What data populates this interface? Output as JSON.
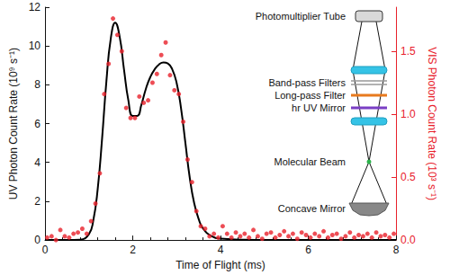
{
  "chart_data": {
    "type": "line",
    "xlabel": "Time of Flight (ms)",
    "ylabel": "UV Photon Count Rate (10⁹ s⁻¹)",
    "y2label": "VIS Photon Count Rate (10³ s⁻¹)",
    "xlim": [
      0,
      8
    ],
    "xticks": [
      0,
      2,
      4,
      6,
      8
    ],
    "ylim": [
      0,
      12
    ],
    "yticks": [
      0,
      2,
      4,
      6,
      8,
      10,
      12
    ],
    "y2lim": [
      0,
      1.85
    ],
    "y2ticks": [
      {
        "value": 0,
        "label": "0.0"
      },
      {
        "value": 0.5,
        "label": "0.5"
      },
      {
        "value": 1,
        "label": "1.0"
      },
      {
        "value": 1.5,
        "label": "1.5"
      }
    ],
    "grid": false,
    "annotations": [
      "Photomultiplier Tube",
      "Band-pass Filters",
      "Long-pass Filter",
      "hr UV Mirror",
      "Molecular Beam",
      "Concave Mirror"
    ],
    "series": [
      {
        "type": "line",
        "color": "#000000",
        "axis": "y",
        "x": [
          0,
          0.5,
          0.8,
          1.0,
          1.1,
          1.2,
          1.3,
          1.4,
          1.5,
          1.6,
          1.7,
          1.8,
          1.9,
          2.0,
          2.1,
          2.2,
          2.3,
          2.4,
          2.5,
          2.6,
          2.7,
          2.8,
          2.9,
          3.0,
          3.1,
          3.2,
          3.3,
          3.4,
          3.5,
          3.6,
          3.8,
          4.0,
          4.5,
          5,
          6,
          8
        ],
        "values": [
          0,
          0,
          0.02,
          0.3,
          1.0,
          2.6,
          5.2,
          8.2,
          10.4,
          11.2,
          10.5,
          8.8,
          7.2,
          6.4,
          6.4,
          7.0,
          7.8,
          8.4,
          8.8,
          9.05,
          9.15,
          9.1,
          8.8,
          8.1,
          6.8,
          5.0,
          3.2,
          1.9,
          1.1,
          0.6,
          0.2,
          0.07,
          0.02,
          0,
          0,
          0
        ]
      },
      {
        "type": "scatter",
        "color": "#e8202a",
        "axis": "y2",
        "marker": "circle",
        "x": [
          0.05,
          0.15,
          0.25,
          0.35,
          0.45,
          0.55,
          0.65,
          0.75,
          0.85,
          0.95,
          1.05,
          1.15,
          1.25,
          1.35,
          1.45,
          1.55,
          1.65,
          1.75,
          1.85,
          1.95,
          2.05,
          2.15,
          2.25,
          2.35,
          2.45,
          2.55,
          2.65,
          2.75,
          2.85,
          2.95,
          3.05,
          3.15,
          3.25,
          3.35,
          3.45,
          3.55,
          3.65,
          3.75,
          3.85,
          3.95,
          4.05,
          4.15,
          4.25,
          4.35,
          4.45,
          4.55,
          4.65,
          4.75,
          4.85,
          4.95,
          5.05,
          5.15,
          5.25,
          5.35,
          5.45,
          5.55,
          5.65,
          5.75,
          5.85,
          5.95,
          6.05,
          6.15,
          6.25,
          6.35,
          6.45,
          6.55,
          6.65,
          6.75,
          6.85,
          6.95,
          7.05,
          7.15,
          7.25,
          7.35,
          7.45,
          7.55,
          7.65,
          7.75,
          7.85,
          7.95
        ],
        "values": [
          0.02,
          0.03,
          0,
          0.08,
          0.03,
          0.02,
          0.05,
          0.06,
          0.09,
          0.05,
          0.15,
          0.29,
          0.53,
          1.16,
          1.4,
          1.76,
          1.63,
          1.5,
          1.05,
          0.97,
          0.97,
          1.14,
          1.09,
          1.11,
          1.25,
          1.32,
          1.47,
          1.57,
          1.31,
          1.19,
          1.16,
          0.94,
          0.64,
          0.46,
          0.23,
          0.11,
          0.09,
          0.03,
          0.05,
          0.02,
          0.11,
          0.05,
          0.02,
          0.06,
          0.03,
          0.05,
          0.02,
          0.08,
          0.03,
          0.01,
          0.05,
          0.06,
          0.02,
          0.04,
          0.07,
          0.03,
          0.05,
          0.01,
          0.06,
          0.04,
          0.02,
          0.05,
          0.03,
          0.07,
          0.02,
          0.04,
          0.05,
          0.01,
          0.03,
          0.06,
          0.02,
          0.04,
          0.03,
          0.05,
          0.02,
          0.06,
          0.03,
          0.04,
          0.02,
          0.05
        ]
      }
    ]
  }
}
